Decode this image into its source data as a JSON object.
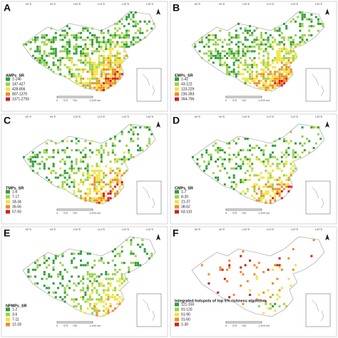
{
  "panels": [
    {
      "letter": "A",
      "legend_title": "AMPs_SR",
      "legend": [
        "1-146",
        "147-427",
        "428-806",
        "807-1370",
        "1371-2793"
      ],
      "colors": [
        "#2e9e3a",
        "#9bd14a",
        "#f2e23a",
        "#f08a24",
        "#d7191c"
      ],
      "density": 0.85
    },
    {
      "letter": "B",
      "legend_title": "EMPs_SR",
      "legend": [
        "1-42",
        "43-122",
        "123-229",
        "230-393",
        "394-796"
      ],
      "colors": [
        "#2e9e3a",
        "#9bd14a",
        "#f2e23a",
        "#f08a24",
        "#d7191c"
      ],
      "density": 0.75
    },
    {
      "letter": "C",
      "legend_title": "TMPs_SR",
      "legend": [
        "1-6",
        "7-17",
        "18-34",
        "35-56",
        "57-93"
      ],
      "colors": [
        "#2e9e3a",
        "#9bd14a",
        "#f2e23a",
        "#f08a24",
        "#d7191c"
      ],
      "density": 0.55
    },
    {
      "letter": "D",
      "legend_title": "CMPs_SR",
      "legend": [
        "1-7",
        "8-20",
        "21-37",
        "38-62",
        "63-110"
      ],
      "colors": [
        "#2e9e3a",
        "#9bd14a",
        "#f2e23a",
        "#f08a24",
        "#d7191c"
      ],
      "density": 0.5
    },
    {
      "letter": "E",
      "legend_title": "NPMPs_SR",
      "legend": [
        "1-2",
        "3-6",
        "7-11",
        "12-18"
      ],
      "colors": [
        "#2e9e3a",
        "#9bd14a",
        "#f2e23a",
        "#f08a24"
      ],
      "density": 0.45
    },
    {
      "letter": "F",
      "legend_title": "Integrated hotspots of top 5% richness algorithm",
      "legend": [
        "121-150",
        "91-120",
        "61-90",
        "31-60",
        "1-30"
      ],
      "colors": [
        "#2e9e3a",
        "#9bd14a",
        "#f2e23a",
        "#f08a24",
        "#d7191c"
      ],
      "density": 0.12
    }
  ],
  "longitudes": [
    "80°E",
    "90°E",
    "100°E",
    "110°E",
    "120°E",
    "130°E"
  ],
  "scale": [
    "0",
    "375",
    "750",
    "1,500",
    "km"
  ]
}
